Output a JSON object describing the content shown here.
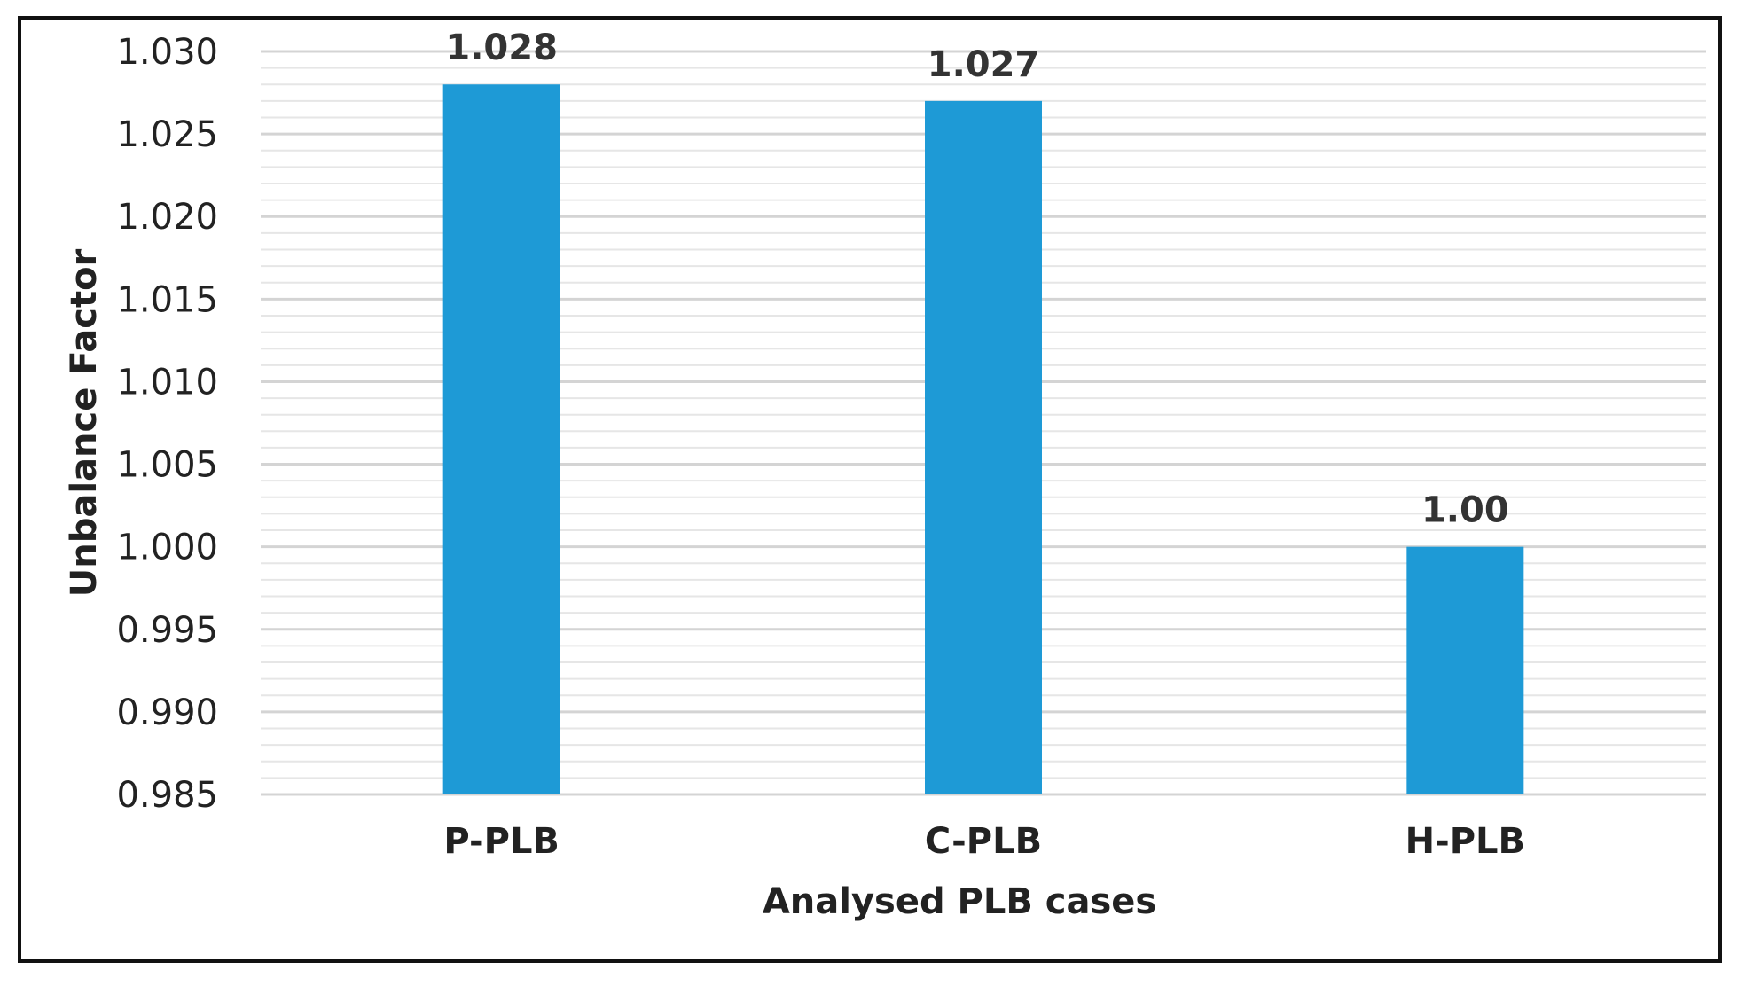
{
  "chart_data": {
    "type": "bar",
    "categories": [
      "P-PLB",
      "C-PLB",
      "H-PLB"
    ],
    "values": [
      1.028,
      1.027,
      1.0
    ],
    "data_labels": [
      "1.028",
      "1.027",
      "1.00"
    ],
    "title": "",
    "xlabel": "Analysed PLB cases",
    "ylabel": "Unbalance Factor",
    "ylim": [
      0.985,
      1.03
    ],
    "yticks": [
      0.985,
      0.99,
      0.995,
      1.0,
      1.005,
      1.01,
      1.015,
      1.02,
      1.025,
      1.03
    ],
    "ytick_labels": [
      "0.985",
      "0.990",
      "0.995",
      "1.000",
      "1.005",
      "1.010",
      "1.015",
      "1.020",
      "1.025",
      "1.030"
    ],
    "minor_ytick_step": 0.001,
    "grid": true,
    "legend": "none",
    "bar_color": "#1E9AD6"
  }
}
